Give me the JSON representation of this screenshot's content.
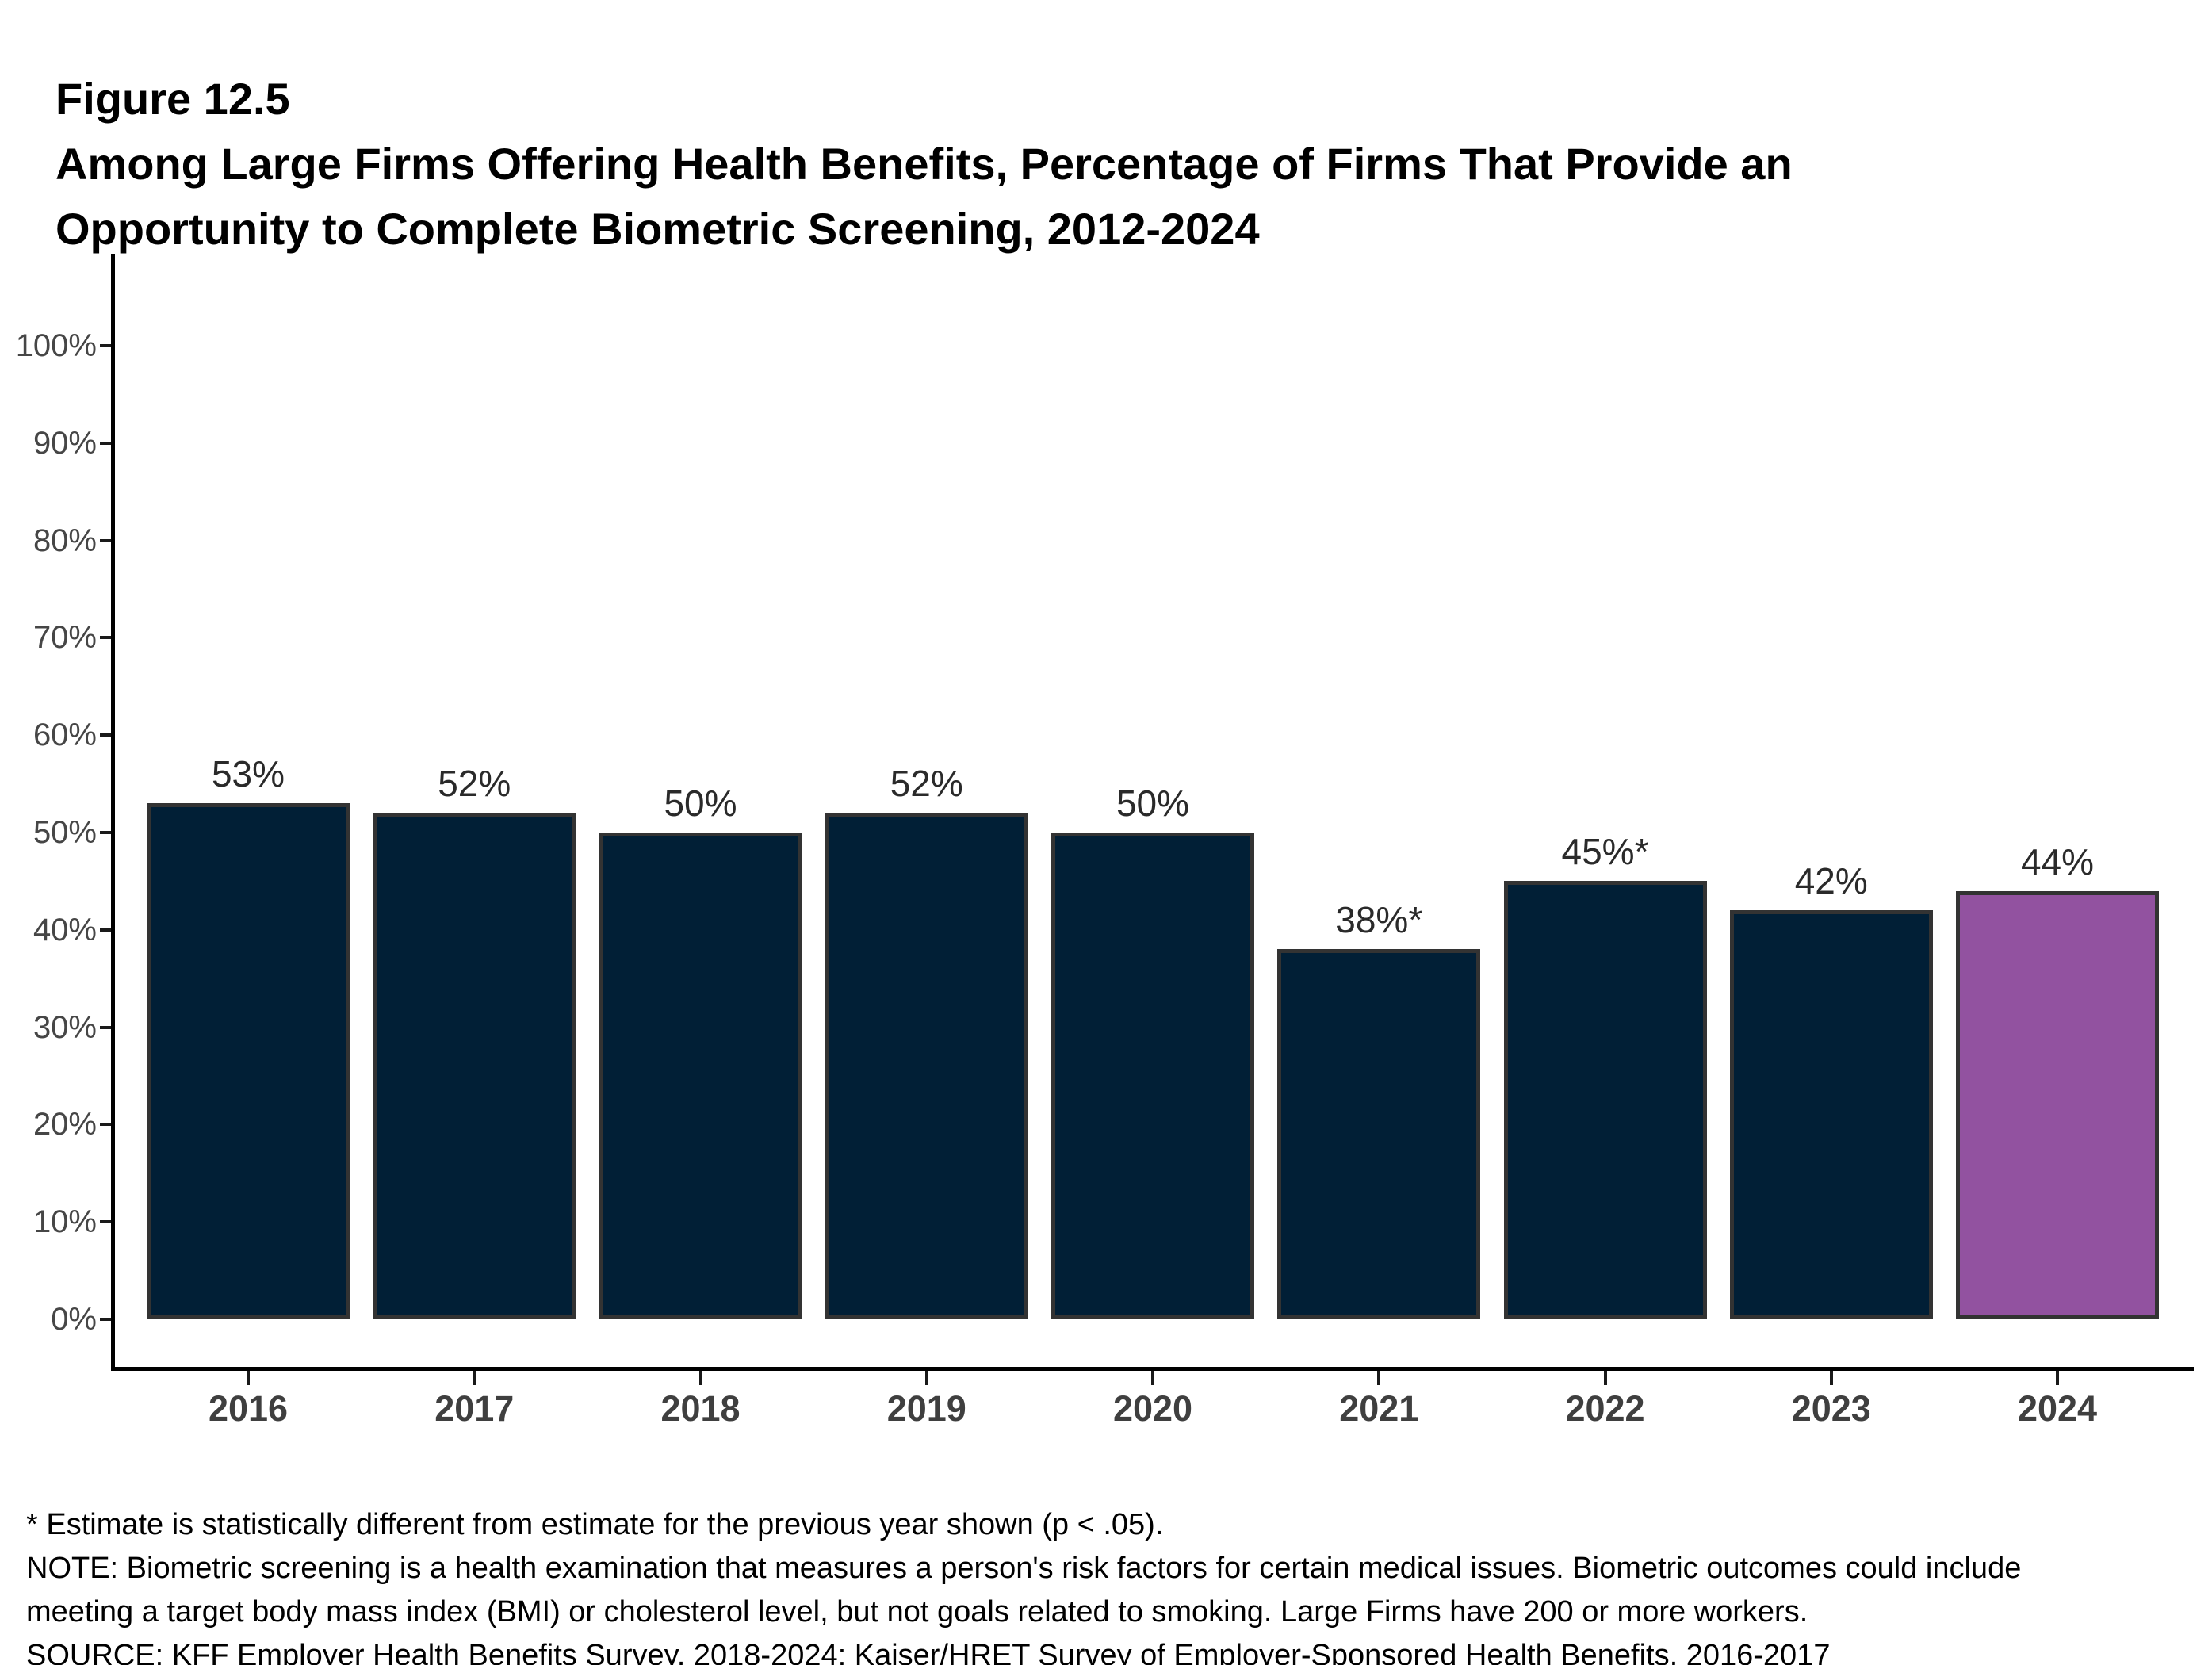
{
  "figure": {
    "label": "Figure 12.5",
    "title_lines": [
      "Among Large Firms Offering Health Benefits, Percentage of Firms That Provide an",
      "Opportunity to Complete Biometric Screening, 2012-2024"
    ]
  },
  "chart_data": {
    "type": "bar",
    "title": "Among Large Firms Offering Health Benefits, Percentage of Firms That Provide an Opportunity to Complete Biometric Screening, 2012-2024",
    "categories": [
      "2016",
      "2017",
      "2018",
      "2019",
      "2020",
      "2021",
      "2022",
      "2023",
      "2024"
    ],
    "values": [
      53,
      52,
      50,
      52,
      50,
      38,
      45,
      42,
      44
    ],
    "bar_labels": [
      "53%",
      "52%",
      "50%",
      "52%",
      "50%",
      "38%*",
      "45%*",
      "42%",
      "44%"
    ],
    "highlight_category": "2024",
    "highlight_index": 8,
    "xlabel": "",
    "ylabel": "",
    "ylim": [
      0,
      100
    ],
    "ytick_step": 10,
    "ytick_labels": [
      "0%",
      "10%",
      "20%",
      "30%",
      "40%",
      "50%",
      "60%",
      "70%",
      "80%",
      "90%",
      "100%"
    ],
    "grid": false,
    "legend_position": "none"
  },
  "colors": {
    "bar": "#011f36",
    "highlight_bar": "#9252a0",
    "bar_border": "#333333",
    "axis_line": "#000000",
    "tick_mark": "#1a1a1a",
    "axis_tick_text": "#464646",
    "x_category_text": "#3f3f3f",
    "value_label_text": "#2a2a2a"
  },
  "footnotes": {
    "lines": [
      "* Estimate is statistically different from estimate for the previous year shown (p < .05).",
      "NOTE: Biometric screening is a health examination that measures a person's risk factors for certain medical issues. Biometric outcomes could include",
      "meeting a target body mass index (BMI) or cholesterol level, but not goals related to smoking. Large Firms have 200 or more workers.",
      "SOURCE: KFF Employer Health Benefits Survey, 2018-2024; Kaiser/HRET Survey of Employer-Sponsored Health Benefits, 2016-2017"
    ]
  }
}
